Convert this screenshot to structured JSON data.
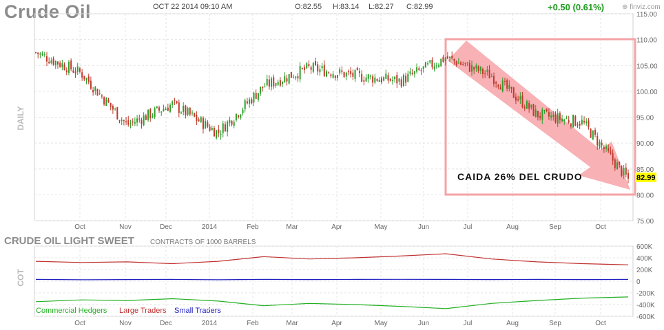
{
  "header": {
    "title": "Crude Oil",
    "datetime": "OCT 22 2014 09:10 AM",
    "open": "O:82.55",
    "high": "H:83.14",
    "low": "L:82.27",
    "close": "C:82.99",
    "change": "+0.50 (0.61%)",
    "brand": "finviz.com"
  },
  "annotation": "CAIDA 26% DEL CRUDO",
  "colors": {
    "up": "#2aa02a",
    "down": "#c0392b",
    "highlight_box": "#f4a3a6",
    "arrow": "#f7a9ad",
    "last_price_bg": "#ffff00",
    "commercial": "#22b022",
    "large": "#c03030",
    "small": "#2020c0"
  },
  "chart_data": [
    {
      "type": "candlestick",
      "panel_label": "DAILY",
      "y_ticks": [
        75,
        80,
        85,
        90,
        95,
        100,
        105,
        110,
        115
      ],
      "y_tick_labels": [
        "75.00",
        "80.00",
        "85.00",
        "90.00",
        "95.00",
        "100.00",
        "105.00",
        "110.00",
        "115.00"
      ],
      "ylim": [
        75,
        115
      ],
      "last_price": "82.99",
      "x_labels": [
        "Oct",
        "Nov",
        "Dec",
        "2014",
        "Feb",
        "Mar",
        "Apr",
        "May",
        "Jun",
        "Jul",
        "Aug",
        "Sep",
        "Oct"
      ],
      "series": [
        {
          "x": [
            "2013-09",
            "2013-10",
            "2013-11",
            "2013-12",
            "2014-01",
            "2014-02",
            "2014-03",
            "2014-04",
            "2014-05",
            "2014-06",
            "2014-07",
            "2014-08",
            "2014-09",
            "2014-10-22"
          ],
          "close": [
            107.5,
            103.5,
            93.5,
            97.5,
            92.0,
            101.0,
            104.5,
            103.0,
            102.0,
            106.5,
            103.0,
            95.5,
            94.0,
            82.99
          ]
        }
      ]
    },
    {
      "type": "line",
      "title": "CRUDE OIL LIGHT SWEET",
      "subtitle": "CONTRACTS OF 1000 BARRELS",
      "panel_label": "COT",
      "y_ticks": [
        -600000,
        -400000,
        -200000,
        0,
        200000,
        400000,
        600000
      ],
      "y_tick_labels": [
        "-600K",
        "-400K",
        "-200K",
        "0",
        "200K",
        "400K",
        "600K"
      ],
      "ylim": [
        -600000,
        600000
      ],
      "x_labels": [
        "Oct",
        "Nov",
        "Dec",
        "2014",
        "Feb",
        "Mar",
        "Apr",
        "May",
        "Jun",
        "Jul",
        "Aug",
        "Sep",
        "Oct"
      ],
      "series": [
        {
          "name": "Commercial Hedgers",
          "values": [
            -350000,
            -320000,
            -330000,
            -300000,
            -340000,
            -420000,
            -380000,
            -400000,
            -430000,
            -470000,
            -380000,
            -330000,
            -290000,
            -270000
          ]
        },
        {
          "name": "Large Traders",
          "values": [
            340000,
            320000,
            330000,
            300000,
            340000,
            420000,
            380000,
            400000,
            430000,
            470000,
            380000,
            330000,
            300000,
            280000
          ]
        },
        {
          "name": "Small Traders",
          "values": [
            30000,
            25000,
            28000,
            30000,
            25000,
            30000,
            28000,
            30000,
            32000,
            30000,
            28000,
            30000,
            28000,
            30000
          ]
        }
      ]
    }
  ]
}
